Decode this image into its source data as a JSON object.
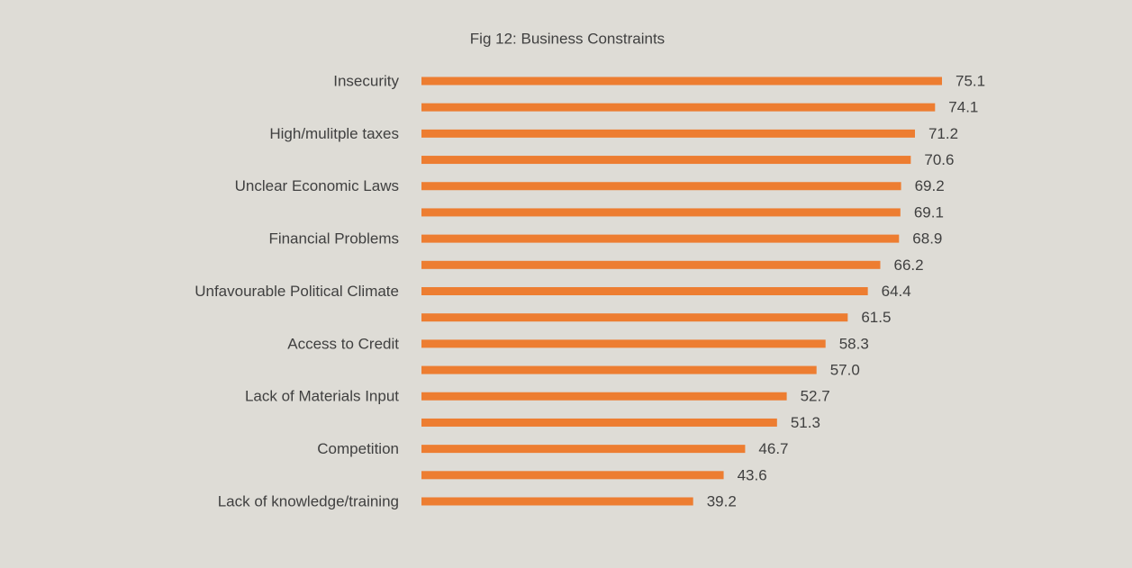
{
  "chart_data": {
    "type": "bar",
    "orientation": "horizontal",
    "title": "Fig 12: Business Constraints",
    "categories": [
      "Insecurity",
      null,
      "High/mulitple taxes",
      null,
      "Unclear Economic Laws",
      null,
      "Financial Problems",
      null,
      "Unfavourable Political Climate",
      null,
      "Access to Credit",
      null,
      "Lack of Materials Input",
      null,
      "Competition",
      null,
      "Lack of knowledge/training"
    ],
    "values": [
      75.1,
      74.1,
      71.2,
      70.6,
      69.2,
      69.1,
      68.9,
      66.2,
      64.4,
      61.5,
      58.3,
      57.0,
      52.7,
      51.3,
      46.7,
      43.6,
      39.2
    ],
    "value_labels": [
      "75.1",
      "74.1",
      "71.2",
      "70.6",
      "69.2",
      "69.1",
      "68.9",
      "66.2",
      "64.4",
      "61.5",
      "58.3",
      "57.0",
      "52.7",
      "51.3",
      "46.7",
      "43.6",
      "39.2"
    ],
    "color": "#ed7d31"
  }
}
